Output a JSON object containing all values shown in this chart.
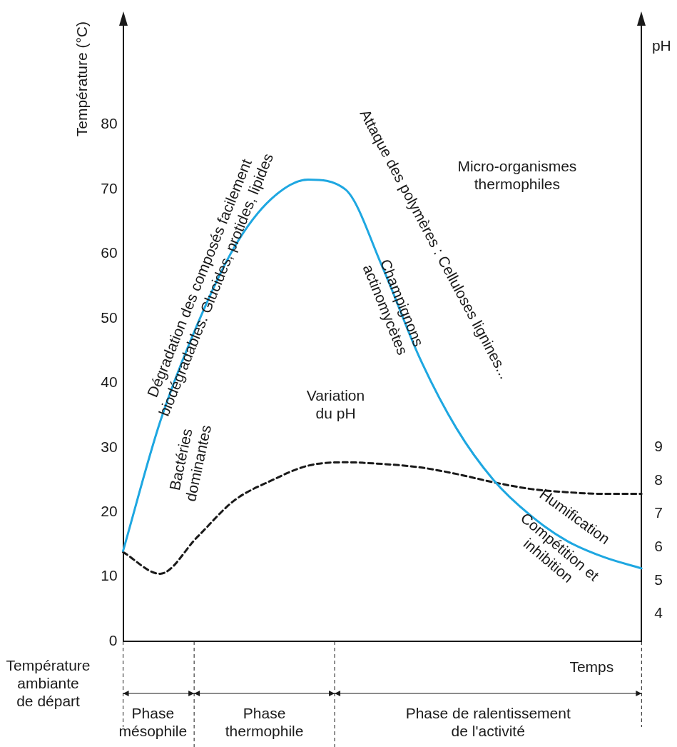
{
  "chart_data": {
    "type": "line",
    "categories": [
      null,
      null,
      null,
      null,
      null,
      null,
      null,
      null,
      null,
      null,
      null,
      null,
      null,
      null,
      null
    ],
    "series": [
      {
        "color": "#1ea7e1",
        "line_style": "solid",
        "values": [
          14,
          34,
          49,
          61,
          68.5,
          71.5,
          70,
          58,
          44,
          33,
          25,
          19.5,
          15.5,
          13,
          11.3
        ]
      },
      {
        "color": "#1a1a1a",
        "line_style": "dashed",
        "axis": "y2",
        "values": [
          5.85,
          5.2,
          6.3,
          7.4,
          8.0,
          8.45,
          8.55,
          8.5,
          8.4,
          8.2,
          7.95,
          7.75,
          7.65,
          7.6,
          7.6
        ]
      }
    ],
    "ylabel": "Température (°C)",
    "y2label": "pH",
    "xlabel": "Temps",
    "ylim": [
      0,
      96
    ],
    "yticks": [
      0,
      10,
      20,
      30,
      40,
      50,
      60,
      70,
      80
    ],
    "y2lim": [
      3.17,
      21.8
    ],
    "y2ticks": [
      4,
      5,
      6,
      7,
      8,
      9
    ],
    "grid": false,
    "legend": false,
    "marker": "none",
    "tick_labels": "y",
    "annotations": [
      "Dégradation des composés facilement\nbiodégradables. Glucides, protides, lipides",
      "Bactéries\ndominantes",
      "Attaque des polymères : Celluloses lignines...",
      "Champignons\nactinomycètes",
      "Micro-organismes\nthermophiles",
      "Variation\ndu pH",
      "Humification",
      "Compétition et\ninhibition",
      "Température\nambiante\nde départ",
      "Phase\nmésophile",
      "Phase\nthermophile",
      "Phase de ralentissement\nde l'activité"
    ]
  }
}
